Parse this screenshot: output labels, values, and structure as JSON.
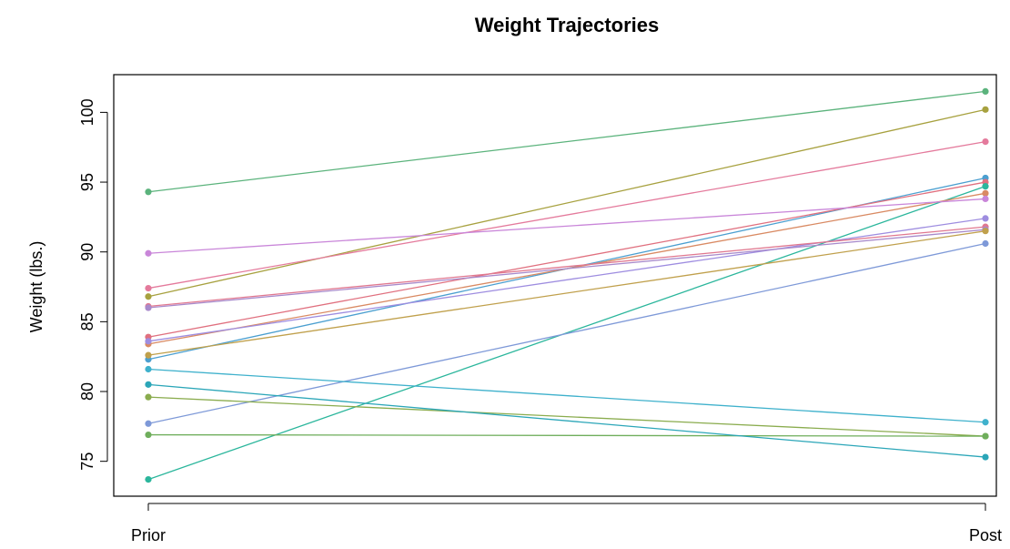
{
  "chart_data": {
    "type": "line",
    "title": "Weight Trajectories",
    "xlabel": "",
    "ylabel": "Weight (lbs.)",
    "categories": [
      "Prior",
      "Post"
    ],
    "ylim": [
      72.5,
      102.7
    ],
    "yticks": [
      75,
      80,
      85,
      90,
      95,
      100
    ],
    "grid": false,
    "legend": "none",
    "series": [
      {
        "values": [
          94.3,
          101.5
        ],
        "color": "#5bb37c"
      },
      {
        "values": [
          86.8,
          100.2
        ],
        "color": "#a7a13f"
      },
      {
        "values": [
          87.4,
          97.9
        ],
        "color": "#e47a9c"
      },
      {
        "values": [
          82.3,
          95.3
        ],
        "color": "#4b9fd0"
      },
      {
        "values": [
          83.9,
          95.0
        ],
        "color": "#e0707f"
      },
      {
        "values": [
          73.7,
          94.7
        ],
        "color": "#2bb69c"
      },
      {
        "values": [
          83.4,
          94.2
        ],
        "color": "#d98a63"
      },
      {
        "values": [
          89.9,
          93.8
        ],
        "color": "#c986d9"
      },
      {
        "values": [
          83.6,
          92.4
        ],
        "color": "#9e8de0"
      },
      {
        "values": [
          86.1,
          91.8
        ],
        "color": "#e07890"
      },
      {
        "values": [
          86.0,
          91.6
        ],
        "color": "#a88acb"
      },
      {
        "values": [
          82.6,
          91.5
        ],
        "color": "#c0a04c"
      },
      {
        "values": [
          77.7,
          90.6
        ],
        "color": "#7e99d8"
      },
      {
        "values": [
          81.6,
          77.8
        ],
        "color": "#3fb1cc"
      },
      {
        "values": [
          79.6,
          76.8
        ],
        "color": "#8aac4e"
      },
      {
        "values": [
          76.9,
          76.8
        ],
        "color": "#6fae5c"
      },
      {
        "values": [
          80.5,
          75.3
        ],
        "color": "#2ba6b8"
      }
    ]
  }
}
